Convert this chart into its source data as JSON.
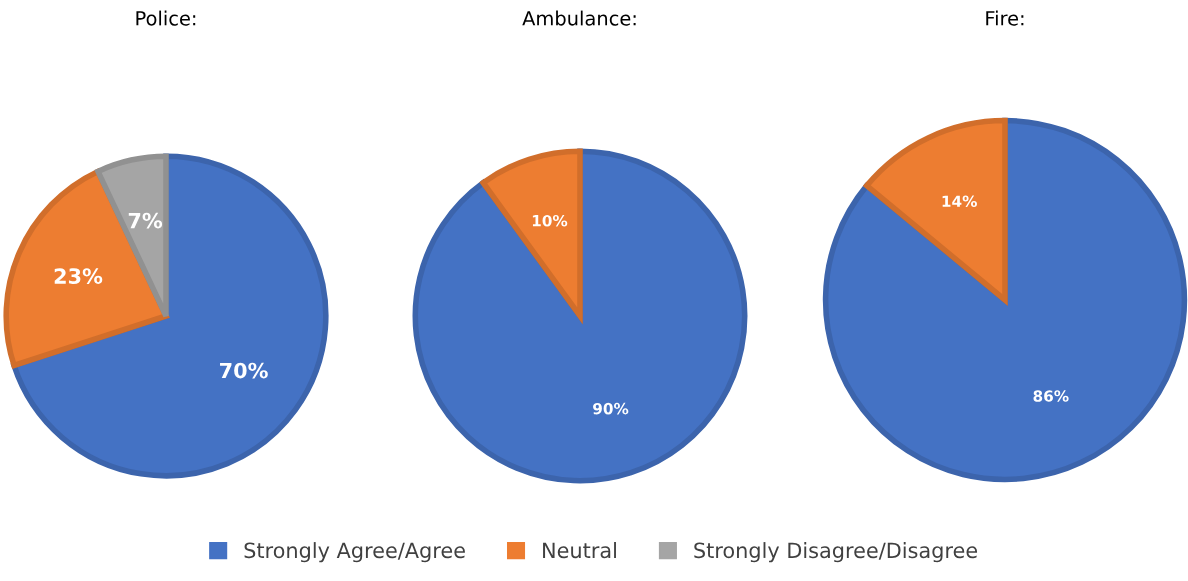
{
  "chart_data": [
    {
      "type": "pie",
      "title": "Police:",
      "categories": [
        "Strongly Agree/Agree",
        "Neutral",
        "Strongly Disagree/Disagree"
      ],
      "values": [
        70,
        23,
        7
      ],
      "colors": [
        "#4472c4",
        "#ed7d31",
        "#a5a5a5"
      ],
      "value_labels": [
        "70%",
        "23%",
        "7%"
      ],
      "legend": "bottom"
    },
    {
      "type": "pie",
      "title": "Ambulance:",
      "categories": [
        null,
        null
      ],
      "values": [
        90,
        10
      ],
      "colors": [
        "#4472c4",
        "#ed7d31"
      ],
      "value_labels": [
        "90%",
        "10%"
      ]
    },
    {
      "type": "pie",
      "title": "Fire:",
      "categories": [
        null,
        null
      ],
      "values": [
        86,
        14
      ],
      "colors": [
        "#4472c4",
        "#ed7d31"
      ],
      "value_labels": [
        "86%",
        "14%"
      ]
    }
  ]
}
